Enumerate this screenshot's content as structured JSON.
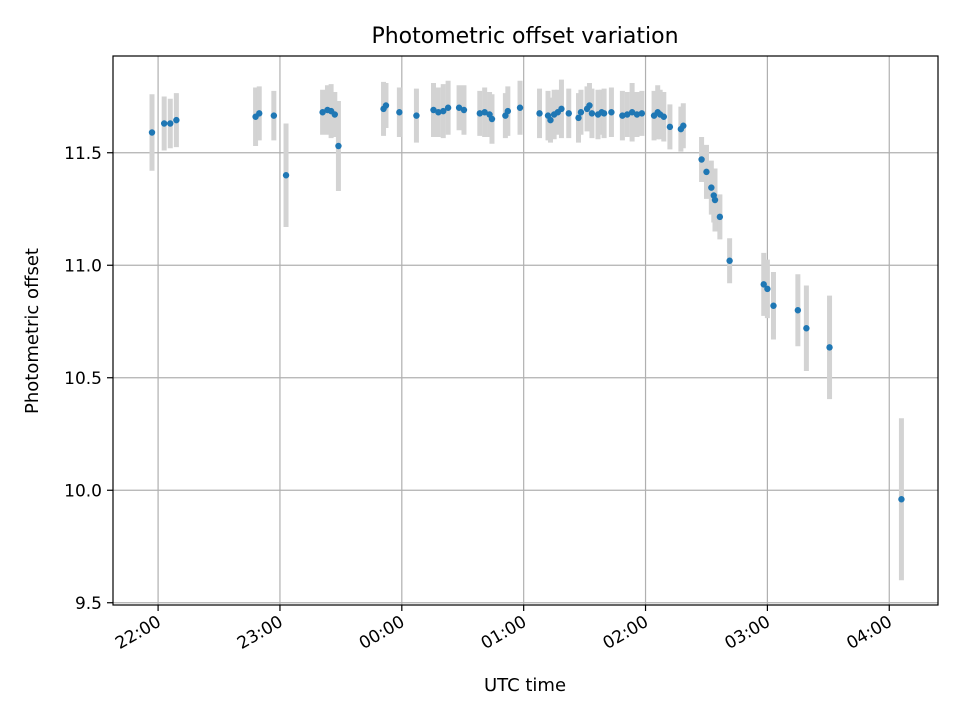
{
  "chart_data": {
    "type": "scatter",
    "title": "Photometric offset variation",
    "xlabel": "UTC time",
    "ylabel": "Photometric offset",
    "x_unit": "UTC hours (after 22:00 values exceed 24)",
    "x_tick_labels": [
      "22:00",
      "23:00",
      "00:00",
      "01:00",
      "02:00",
      "03:00",
      "04:00"
    ],
    "x_ticks": [
      22,
      23,
      24,
      25,
      26,
      27,
      28
    ],
    "xlim": [
      21.63,
      28.4
    ],
    "y_ticks": [
      9.5,
      10.0,
      10.5,
      11.0,
      11.5
    ],
    "y_tick_labels": [
      "9.5",
      "10.0",
      "10.5",
      "11.0",
      "11.5"
    ],
    "ylim": [
      9.49,
      11.93
    ],
    "grid": true,
    "point_color": "#1f77b4",
    "errorbar_color": "#d3d3d3",
    "series": [
      {
        "x": [
          21.95,
          22.05,
          22.1,
          22.15,
          22.8,
          22.83,
          22.95,
          23.05,
          23.35,
          23.39,
          23.42,
          23.45,
          23.48,
          23.85,
          23.87,
          23.98,
          24.12,
          24.26,
          24.3,
          24.34,
          24.38,
          24.47,
          24.51,
          24.64,
          24.68,
          24.72,
          24.74,
          24.85,
          24.87,
          24.97,
          25.13,
          25.2,
          25.22,
          25.25,
          25.28,
          25.31,
          25.37,
          25.45,
          25.47,
          25.52,
          25.54,
          25.56,
          25.61,
          25.64,
          25.66,
          25.72,
          25.81,
          25.85,
          25.89,
          25.93,
          25.97,
          26.07,
          26.1,
          26.12,
          26.15,
          26.2,
          26.29,
          26.31,
          26.46,
          26.5,
          26.54,
          26.56,
          26.57,
          26.61,
          26.69,
          26.97,
          27.0,
          27.05,
          27.25,
          27.32,
          27.51,
          28.1
        ],
        "y": [
          11.59,
          11.63,
          11.63,
          11.645,
          11.66,
          11.675,
          11.665,
          11.4,
          11.68,
          11.69,
          11.685,
          11.67,
          11.53,
          11.695,
          11.71,
          11.68,
          11.665,
          11.69,
          11.68,
          11.685,
          11.7,
          11.7,
          11.69,
          11.675,
          11.68,
          11.67,
          11.65,
          11.665,
          11.685,
          11.7,
          11.675,
          11.665,
          11.645,
          11.67,
          11.68,
          11.695,
          11.675,
          11.655,
          11.68,
          11.695,
          11.71,
          11.675,
          11.67,
          11.68,
          11.675,
          11.68,
          11.665,
          11.67,
          11.68,
          11.67,
          11.675,
          11.665,
          11.68,
          11.67,
          11.66,
          11.615,
          11.605,
          11.62,
          11.47,
          11.415,
          11.345,
          11.31,
          11.29,
          11.215,
          11.02,
          10.915,
          10.895,
          10.82,
          10.8,
          10.72,
          10.635,
          9.96
        ],
        "yerr": [
          0.17,
          0.12,
          0.11,
          0.12,
          0.13,
          0.12,
          0.11,
          0.23,
          0.1,
          0.11,
          0.12,
          0.1,
          0.2,
          0.12,
          0.1,
          0.11,
          0.12,
          0.12,
          0.11,
          0.12,
          0.12,
          0.1,
          0.11,
          0.1,
          0.11,
          0.1,
          0.11,
          0.1,
          0.11,
          0.12,
          0.11,
          0.11,
          0.1,
          0.11,
          0.1,
          0.13,
          0.11,
          0.11,
          0.1,
          0.1,
          0.1,
          0.11,
          0.11,
          0.1,
          0.11,
          0.11,
          0.11,
          0.1,
          0.13,
          0.1,
          0.1,
          0.11,
          0.12,
          0.11,
          0.11,
          0.1,
          0.1,
          0.1,
          0.1,
          0.12,
          0.12,
          0.12,
          0.14,
          0.1,
          0.1,
          0.14,
          0.13,
          0.15,
          0.16,
          0.19,
          0.23,
          0.36
        ]
      }
    ]
  }
}
